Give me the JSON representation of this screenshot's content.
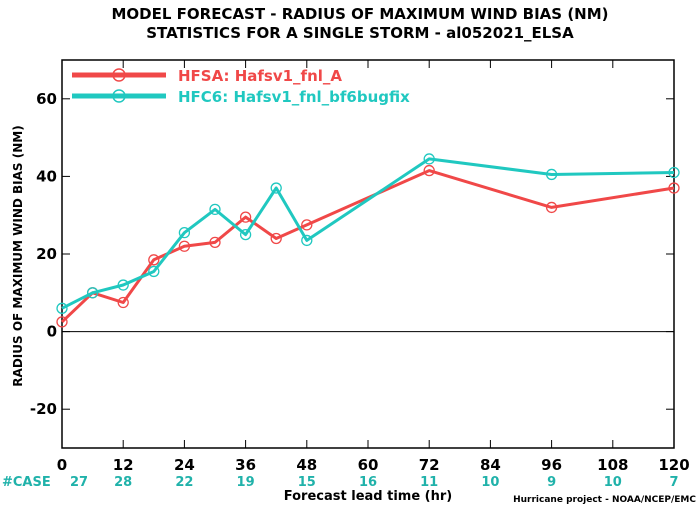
{
  "chart_data": {
    "type": "line",
    "title_line1": "MODEL FORECAST - RADIUS OF MAXIMUM WIND BIAS (NM)",
    "title_line2": "STATISTICS FOR A SINGLE STORM - al052021_ELSA",
    "xlabel": "Forecast lead time (hr)",
    "ylabel": "RADIUS OF MAXIMUM WIND BIAS (NM)",
    "xlim": [
      0,
      120
    ],
    "ylim": [
      -30,
      70
    ],
    "xticks": [
      0,
      12,
      24,
      36,
      48,
      60,
      72,
      84,
      96,
      108,
      120
    ],
    "yticks": [
      -20,
      0,
      20,
      40,
      60
    ],
    "zero_line": true,
    "grid": false,
    "legend": "top-left",
    "series": [
      {
        "name": "HFSA: Hafsv1_fnl_A",
        "color": "#f04848",
        "x": [
          0,
          6,
          12,
          18,
          24,
          30,
          36,
          42,
          48,
          72,
          96,
          120
        ],
        "y": [
          2.5,
          10,
          7.5,
          18.5,
          22,
          23,
          29.5,
          24,
          27.5,
          41.5,
          32,
          37
        ]
      },
      {
        "name": "HFC6: Hafsv1_fnl_bf6bugfix",
        "color": "#20c8c0",
        "x": [
          0,
          6,
          12,
          18,
          24,
          30,
          36,
          42,
          48,
          72,
          96,
          120
        ],
        "y": [
          6,
          10,
          12,
          15.5,
          25.5,
          31.5,
          25,
          37,
          23.5,
          44.5,
          40.5,
          41
        ]
      }
    ],
    "case_label": "#CASE",
    "case_counts": [
      {
        "x": 0,
        "label": "27"
      },
      {
        "x": 12,
        "label": "28"
      },
      {
        "x": 24,
        "label": "22"
      },
      {
        "x": 36,
        "label": "19"
      },
      {
        "x": 48,
        "label": "15"
      },
      {
        "x": 60,
        "label": "16"
      },
      {
        "x": 72,
        "label": "11"
      },
      {
        "x": 84,
        "label": "10"
      },
      {
        "x": 96,
        "label": "9"
      },
      {
        "x": 108,
        "label": "10"
      },
      {
        "x": 120,
        "label": "7"
      }
    ],
    "credit": "Hurricane project - NOAA/NCEP/EMC"
  }
}
